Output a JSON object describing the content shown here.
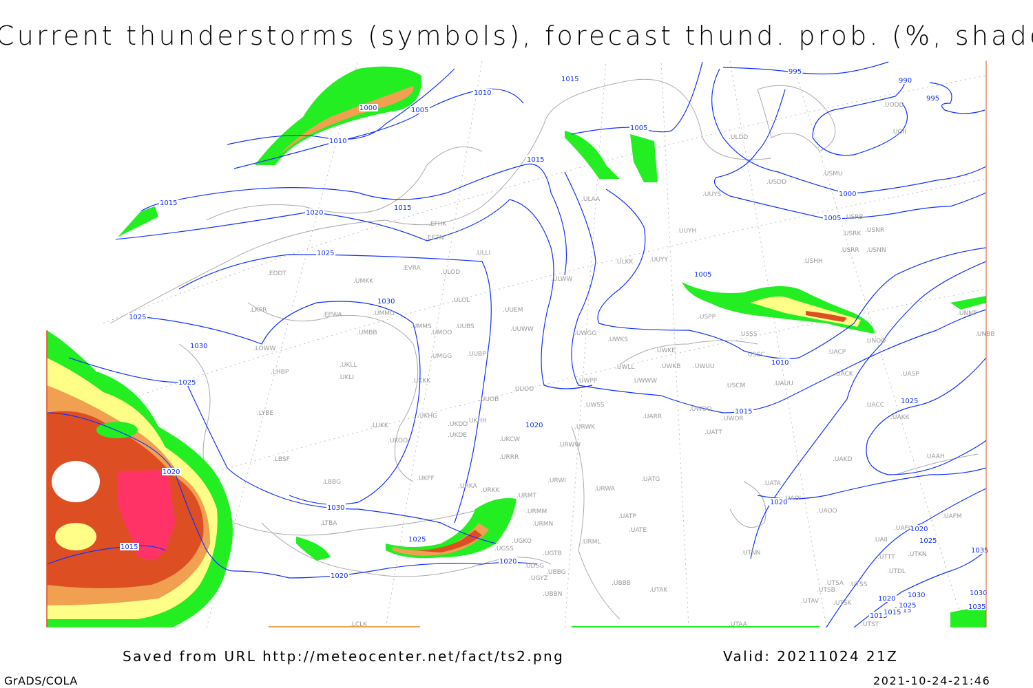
{
  "title": "Current thunderstorms (symbols), forecast thund. prob. (%, shaded)",
  "footer": {
    "saved_from": "Saved from URL http://meteocenter.net/fact/ts2.png",
    "valid": "Valid: 20211024 21Z",
    "software": "GrADS/COLA",
    "timestamp": "2021-10-24-21:46"
  },
  "colors": {
    "prob_low": "#22ee22",
    "prob_mid": "#ffff88",
    "prob_high": "#f0a050",
    "prob_very_high": "#dd4f22",
    "thunderstorm_symbols": "#ff3366",
    "isobars": "#1030ff",
    "coastlines": "#aaaaaa"
  },
  "isobar_labels": [
    "1015",
    "1010",
    "1000",
    "1005",
    "1010",
    "1015",
    "1015",
    "1005",
    "995",
    "990",
    "995",
    "1000",
    "1005",
    "1015",
    "1020",
    "1015",
    "1025",
    "1030",
    "1025",
    "1030",
    "1025",
    "1020",
    "1030",
    "1025",
    "1020",
    "1020",
    "1020",
    "1015",
    "1005",
    "1010",
    "1015",
    "1025",
    "1020",
    "1020",
    "1025",
    "1035",
    "1030",
    "1030",
    "1035",
    "1025",
    "1020",
    "1015",
    "1015"
  ],
  "stations": [
    "EFHK",
    "EETN",
    "EVRA",
    "ULLI",
    "ULOD",
    "UMKK",
    "EDDT",
    "ULOL",
    "UUEM",
    "ULWW",
    "ULAA",
    "UUYS",
    "UUYH",
    "UUYY",
    "ULKK",
    "USDD",
    "ULDD",
    "USHH",
    "USRK",
    "USNR",
    "USRR",
    "USNN",
    "USRB",
    "USMU",
    "UODD",
    "UOII",
    "EPWA",
    "UMMG",
    "LKPR",
    "UMBB",
    "UMMS",
    "UMOO",
    "UUBS",
    "UUWW",
    "UWGG",
    "UWKS",
    "USSS",
    "USPP",
    "USCC",
    "UNOO",
    "UNBB",
    "UNNT",
    "UACP",
    "UACK",
    "UASP",
    "LOWW",
    "LHBP",
    "UKLL",
    "UKLI",
    "UMGG",
    "UUBP",
    "UWKE",
    "UWKB",
    "UWUU",
    "UWLL",
    "UWWW",
    "UWPP",
    "USCM",
    "UAUU",
    "UKKK",
    "UUOO",
    "UUOB",
    "LYBE",
    "UKHH",
    "UKHG",
    "UKDD",
    "UKDE",
    "LUKK",
    "UKOO",
    "UKCW",
    "URRR",
    "UWSS",
    "URWK",
    "UARR",
    "UWOO",
    "UWOR",
    "UATT",
    "UACC",
    "UAKK",
    "LBSF",
    "LBBG",
    "UKFF",
    "URKA",
    "URKK",
    "URMT",
    "URWW",
    "URWI",
    "UATG",
    "URWA",
    "UATA",
    "UAOI",
    "UAOO",
    "UAKD",
    "UAAH",
    "UATP",
    "UATE",
    "URMM",
    "URMN",
    "URML",
    "UGSS",
    "UGKO",
    "UGTB",
    "UDSG",
    "UBBG",
    "UGYZ",
    "UBBB",
    "UTAK",
    "UBBN",
    "UTNN",
    "UTAV",
    "UTSB",
    "UTSK",
    "UTSA",
    "UTSS",
    "UTDL",
    "UTTT",
    "UAII",
    "UAFM",
    "UAFO",
    "UTKN",
    "UTST",
    "UTAA",
    "LCLK",
    "LTBA"
  ]
}
